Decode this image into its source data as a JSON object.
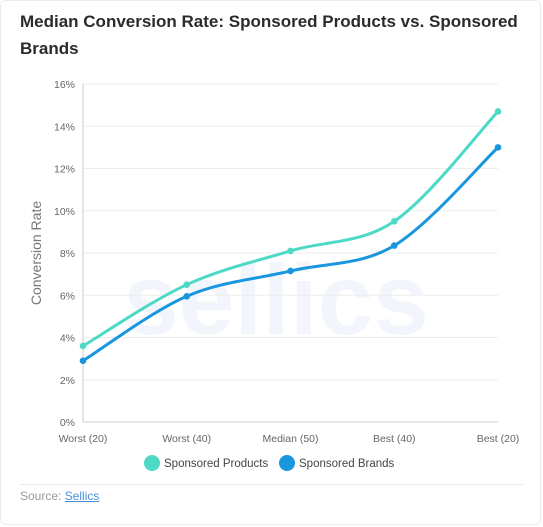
{
  "title": "Median Conversion Rate: Sponsored Products vs. Sponsored Brands",
  "watermark": "sellics",
  "source": {
    "label": "Source:",
    "link_text": "Sellics"
  },
  "chart_data": {
    "type": "line",
    "categories": [
      "Worst (20)",
      "Worst (40)",
      "Median (50)",
      "Best (40)",
      "Best (20)"
    ],
    "series": [
      {
        "name": "Sponsored Products",
        "values": [
          3.6,
          6.5,
          8.1,
          9.5,
          14.7
        ],
        "color": "#4dd9c6"
      },
      {
        "name": "Sponsored Brands",
        "values": [
          2.9,
          5.95,
          7.15,
          8.35,
          13.0
        ],
        "color": "#1a96de"
      }
    ],
    "ylabel": "Conversion Rate",
    "ylim": [
      0,
      16
    ],
    "yticks": [
      0,
      2,
      4,
      6,
      8,
      10,
      12,
      14,
      16
    ],
    "ytick_labels": [
      "0%",
      "2%",
      "4%",
      "6%",
      "8%",
      "10%",
      "12%",
      "14%",
      "16%"
    ],
    "grid": true,
    "legend": "bottom"
  }
}
